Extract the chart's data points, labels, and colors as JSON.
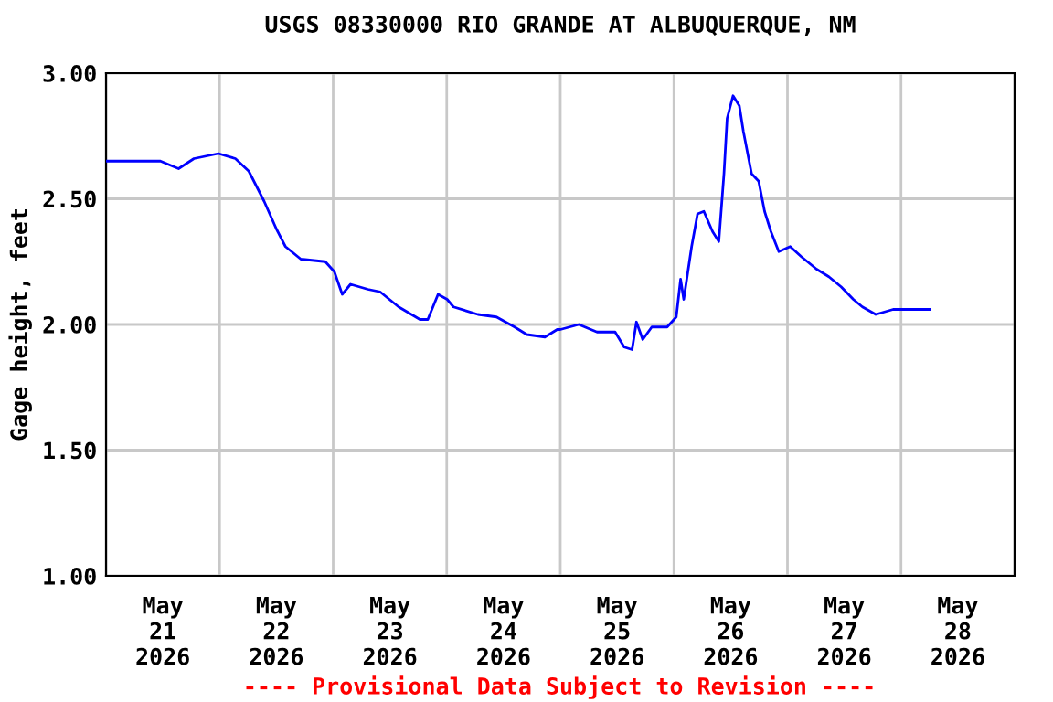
{
  "chart_data": {
    "type": "line",
    "title": "USGS 08330000 RIO GRANDE AT ALBUQUERQUE, NM",
    "ylabel": "Gage height, feet",
    "annotations": [
      "---- Provisional Data Subject to Revision ----"
    ],
    "x": [
      "2026-05-21T00:00",
      "2026-05-21T11:30",
      "2026-05-21T15:20",
      "2026-05-21T18:35",
      "2026-05-21T23:45",
      "2026-05-22T03:20",
      "2026-05-22T06:10",
      "2026-05-22T09:25",
      "2026-05-22T12:00",
      "2026-05-22T13:55",
      "2026-05-22T17:10",
      "2026-05-22T22:20",
      "2026-05-23T00:15",
      "2026-05-23T01:55",
      "2026-05-23T03:40",
      "2026-05-23T07:20",
      "2026-05-23T09:55",
      "2026-05-23T13:50",
      "2026-05-23T18:20",
      "2026-05-23T20:00",
      "2026-05-23T22:10",
      "2026-05-24T00:05",
      "2026-05-24T01:25",
      "2026-05-24T06:35",
      "2026-05-24T10:30",
      "2026-05-24T14:20",
      "2026-05-24T16:55",
      "2026-05-24T20:45",
      "2026-05-24T23:20",
      "2026-05-25T00:00",
      "2026-05-25T03:55",
      "2026-05-25T07:45",
      "2026-05-25T11:35",
      "2026-05-25T13:30",
      "2026-05-25T15:10",
      "2026-05-25T16:05",
      "2026-05-25T17:25",
      "2026-05-25T19:20",
      "2026-05-25T22:35",
      "2026-05-26T00:30",
      "2026-05-26T01:25",
      "2026-05-26T02:05",
      "2026-05-26T03:45",
      "2026-05-26T05:00",
      "2026-05-26T06:20",
      "2026-05-26T08:10",
      "2026-05-26T09:30",
      "2026-05-26T10:35",
      "2026-05-26T11:15",
      "2026-05-26T12:30",
      "2026-05-26T13:50",
      "2026-05-26T14:40",
      "2026-05-26T16:25",
      "2026-05-26T17:55",
      "2026-05-26T19:10",
      "2026-05-26T20:30",
      "2026-05-26T22:10",
      "2026-05-27T00:35",
      "2026-05-27T02:55",
      "2026-05-27T06:10",
      "2026-05-27T08:45",
      "2026-05-27T11:20",
      "2026-05-27T13:55",
      "2026-05-27T15:50",
      "2026-05-27T18:40",
      "2026-05-27T22:20",
      "2026-05-28T02:50",
      "2026-05-28T06:00"
    ],
    "series": [
      {
        "color": "#0000ff",
        "values": [
          2.65,
          2.65,
          2.62,
          2.66,
          2.68,
          2.66,
          2.61,
          2.49,
          2.38,
          2.31,
          2.26,
          2.25,
          2.21,
          2.12,
          2.16,
          2.14,
          2.13,
          2.07,
          2.02,
          2.02,
          2.12,
          2.1,
          2.07,
          2.04,
          2.03,
          1.99,
          1.96,
          1.95,
          1.98,
          1.98,
          2.0,
          1.97,
          1.97,
          1.91,
          1.9,
          2.01,
          1.94,
          1.99,
          1.99,
          2.03,
          2.18,
          2.1,
          2.31,
          2.44,
          2.45,
          2.37,
          2.33,
          2.6,
          2.82,
          2.91,
          2.87,
          2.77,
          2.6,
          2.57,
          2.45,
          2.37,
          2.29,
          2.31,
          2.27,
          2.22,
          2.19,
          2.15,
          2.1,
          2.07,
          2.04,
          2.06,
          2.06,
          2.06
        ]
      }
    ],
    "xlim": [
      "2026-05-21T00:00",
      "2026-05-29T00:00"
    ],
    "xticks": [
      {
        "value": "2026-05-21T00:00",
        "label": null
      },
      {
        "value": "2026-05-21T12:00",
        "label": "May\n21\n2026"
      },
      {
        "value": "2026-05-22T00:00",
        "label": null
      },
      {
        "value": "2026-05-22T12:00",
        "label": "May\n22\n2026"
      },
      {
        "value": "2026-05-23T00:00",
        "label": null
      },
      {
        "value": "2026-05-23T12:00",
        "label": "May\n23\n2026"
      },
      {
        "value": "2026-05-24T00:00",
        "label": null
      },
      {
        "value": "2026-05-24T12:00",
        "label": "May\n24\n2026"
      },
      {
        "value": "2026-05-25T00:00",
        "label": null
      },
      {
        "value": "2026-05-25T12:00",
        "label": "May\n25\n2026"
      },
      {
        "value": "2026-05-26T00:00",
        "label": null
      },
      {
        "value": "2026-05-26T12:00",
        "label": "May\n26\n2026"
      },
      {
        "value": "2026-05-27T00:00",
        "label": null
      },
      {
        "value": "2026-05-27T12:00",
        "label": "May\n27\n2026"
      },
      {
        "value": "2026-05-28T00:00",
        "label": null
      },
      {
        "value": "2026-05-28T12:00",
        "label": "May\n28\n2026"
      },
      {
        "value": "2026-05-29T00:00",
        "label": null
      }
    ],
    "ylim": [
      1.0,
      3.0
    ],
    "yticks": [
      {
        "value": 1.0,
        "label": "1.00"
      },
      {
        "value": 1.5,
        "label": "1.50"
      },
      {
        "value": 2.0,
        "label": "2.00"
      },
      {
        "value": 2.5,
        "label": "2.50"
      },
      {
        "value": 3.0,
        "label": "3.00"
      }
    ],
    "grid": true,
    "marker": "none",
    "line_style": "solid",
    "legend": false
  }
}
